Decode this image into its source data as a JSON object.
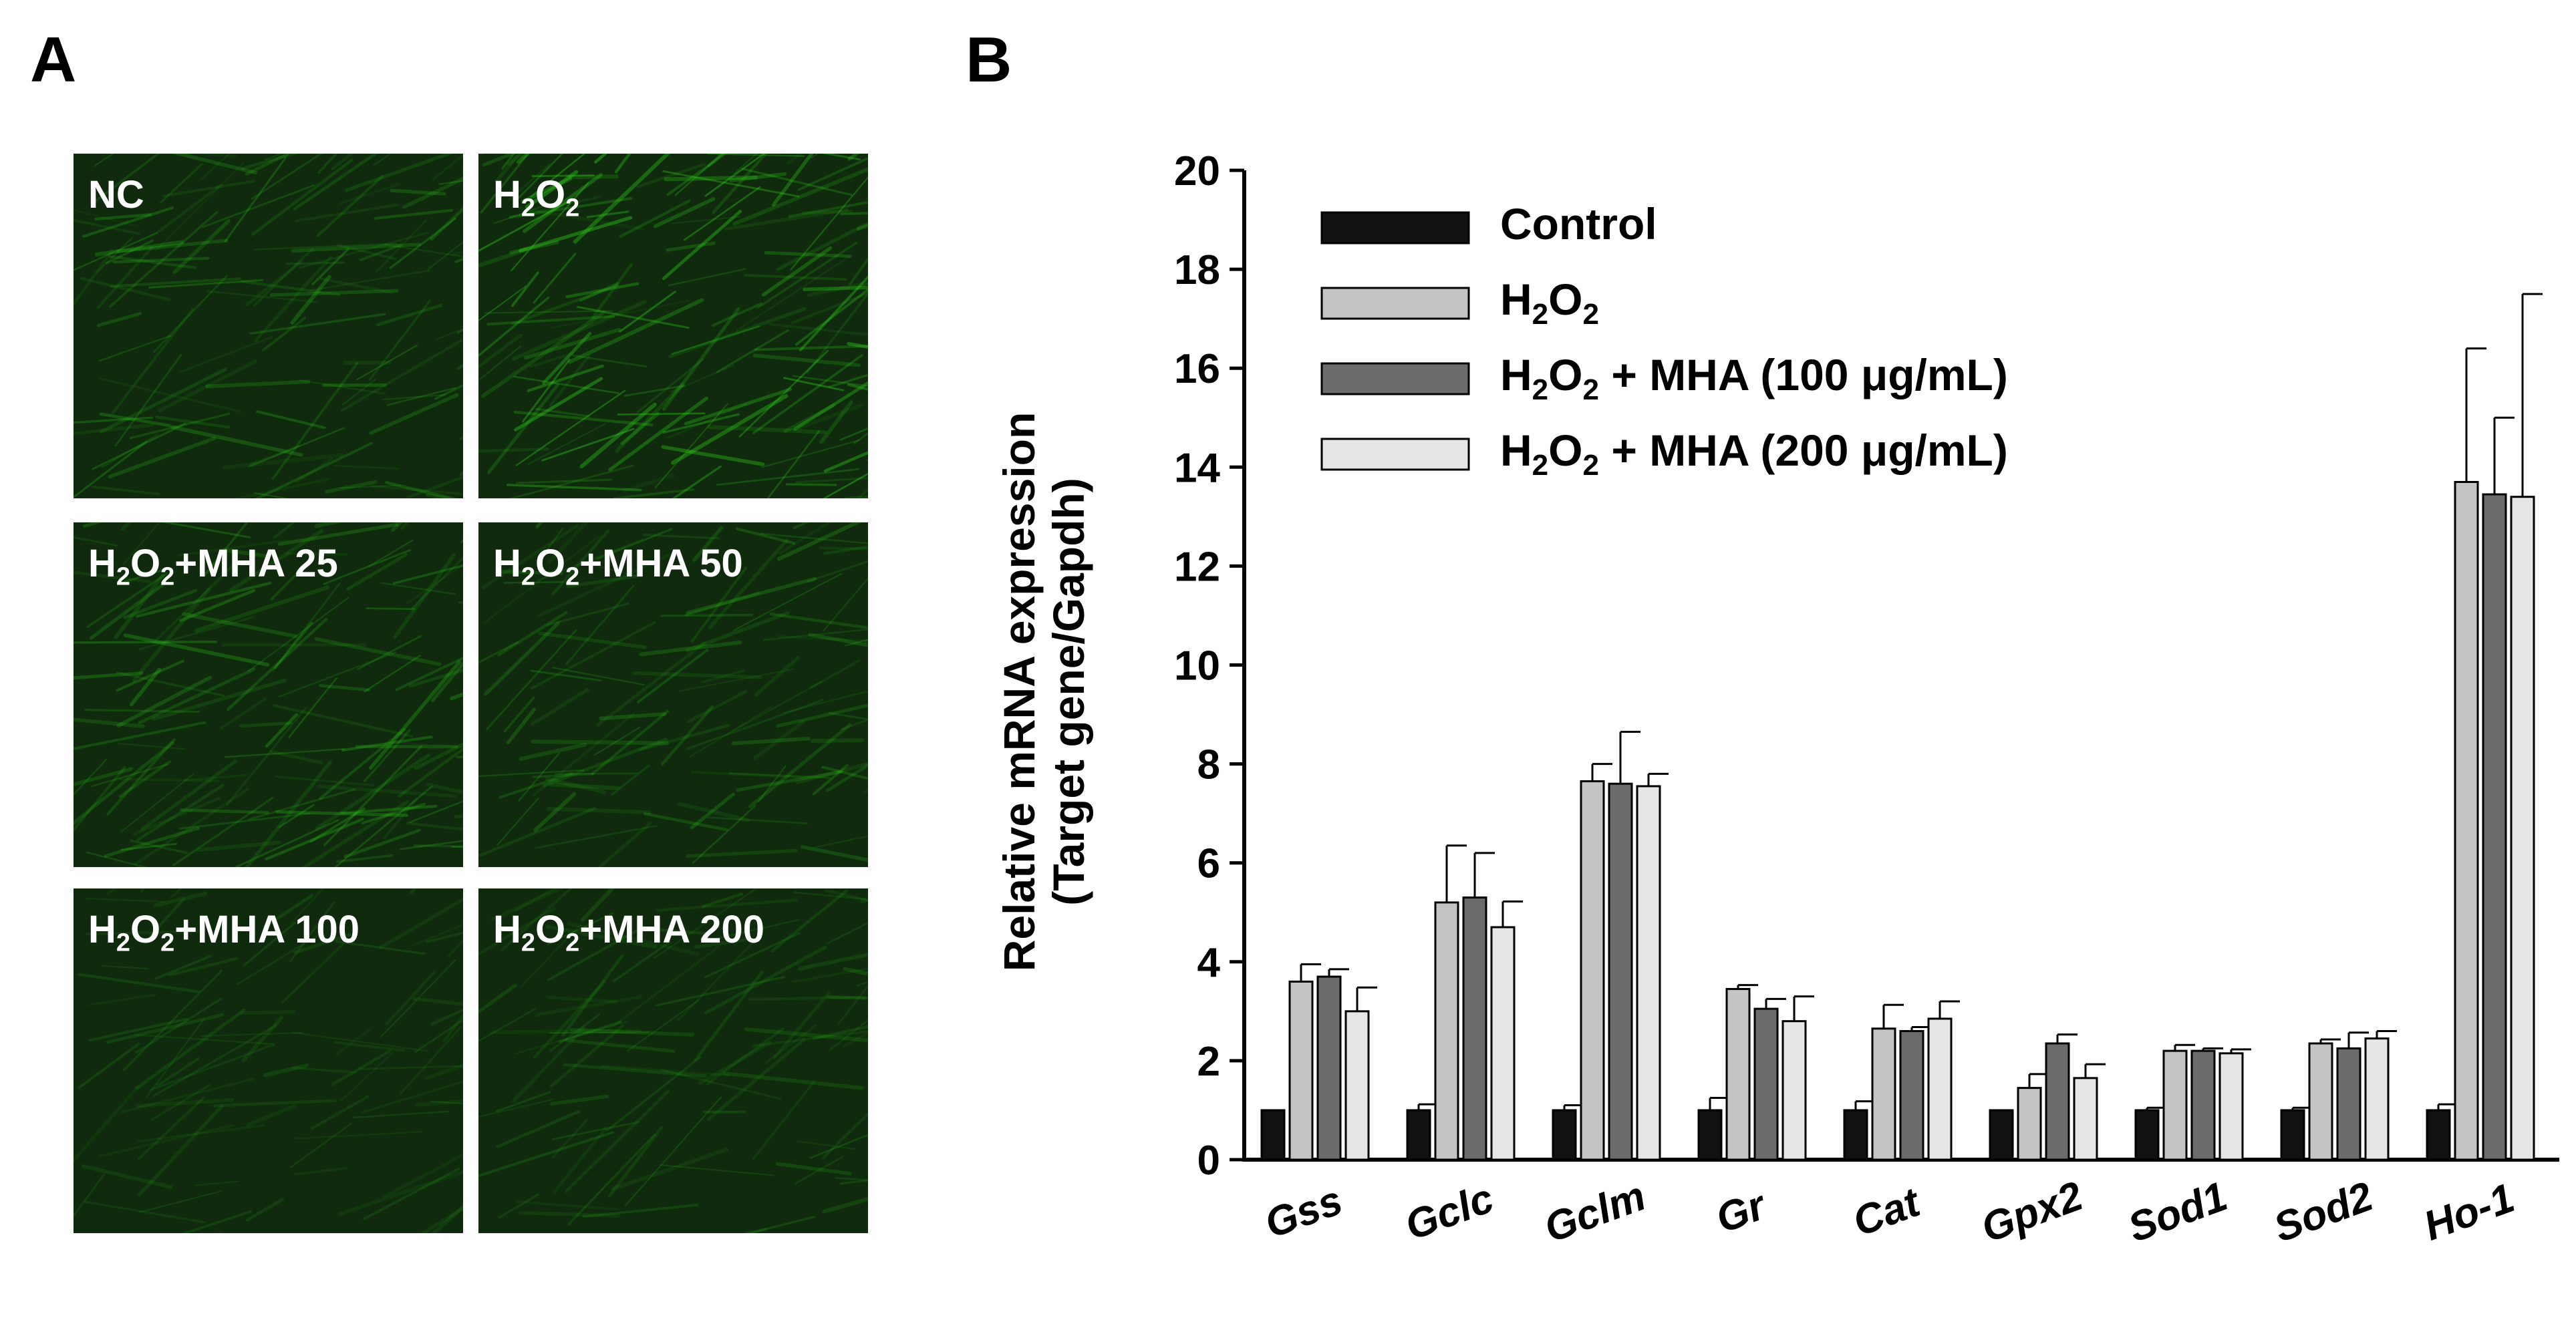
{
  "panel_a": {
    "letter": "A",
    "tiles": [
      {
        "label_html": "NC",
        "brightness": 0.55
      },
      {
        "label_html": "H<sub>2</sub>O<sub>2</sub>",
        "brightness": 1.0
      },
      {
        "label_html": "H<sub>2</sub>O<sub>2</sub>+MHA 25",
        "brightness": 0.6
      },
      {
        "label_html": "H<sub>2</sub>O<sub>2</sub>+MHA 50",
        "brightness": 0.45
      },
      {
        "label_html": "H<sub>2</sub>O<sub>2</sub>+MHA 100",
        "brightness": 0.2
      },
      {
        "label_html": "H<sub>2</sub>O<sub>2</sub>+MHA 200",
        "brightness": 0.3
      }
    ],
    "fluorescence_color": "#2ecc1a",
    "background_color": "#0f2a0d"
  },
  "panel_b": {
    "letter": "B"
  },
  "chart_data": {
    "type": "bar",
    "title": "",
    "xlabel": "",
    "ylabel_lines": [
      "Relative mRNA expression",
      "(Target gene/Gapdh)"
    ],
    "ylim": [
      0,
      20
    ],
    "yticks": [
      0,
      2,
      4,
      6,
      8,
      10,
      12,
      14,
      16,
      18,
      20
    ],
    "grid": false,
    "legend_position": "top-left",
    "categories": [
      "Gss",
      "Gclc",
      "Gclm",
      "Gr",
      "Cat",
      "Gpx2",
      "Sod1",
      "Sod2",
      "Ho-1"
    ],
    "series": [
      {
        "name": "Control",
        "color": "#111111",
        "values": [
          1.0,
          1.0,
          1.0,
          1.0,
          1.0,
          1.0,
          1.0,
          1.0,
          1.0
        ],
        "errors": [
          0.0,
          0.12,
          0.1,
          0.25,
          0.18,
          0.0,
          0.05,
          0.05,
          0.12
        ]
      },
      {
        "name": "H2O2",
        "color": "#c4c4c4",
        "values": [
          3.6,
          5.2,
          7.65,
          3.45,
          2.65,
          1.45,
          2.2,
          2.35,
          13.7
        ],
        "errors": [
          0.35,
          1.15,
          0.35,
          0.08,
          0.48,
          0.28,
          0.12,
          0.08,
          2.7
        ]
      },
      {
        "name": "H2O2 + MHA (100 μg/mL)",
        "color": "#6b6b6b",
        "values": [
          3.7,
          5.3,
          7.6,
          3.05,
          2.6,
          2.35,
          2.2,
          2.25,
          13.45
        ],
        "errors": [
          0.15,
          0.9,
          1.05,
          0.2,
          0.08,
          0.18,
          0.05,
          0.32,
          1.55
        ]
      },
      {
        "name": "H2O2 + MHA (200 μg/mL)",
        "color": "#e6e6e6",
        "values": [
          3.0,
          4.7,
          7.55,
          2.8,
          2.85,
          1.65,
          2.15,
          2.45,
          13.4
        ],
        "errors": [
          0.48,
          0.52,
          0.25,
          0.5,
          0.35,
          0.28,
          0.08,
          0.15,
          4.1
        ]
      }
    ],
    "legend_labels_html": [
      "Control",
      "H<tspan dy=\"14\" font-size=\"44\">2</tspan><tspan dy=\"-14\">O</tspan><tspan dy=\"14\" font-size=\"44\">2</tspan>",
      "H<tspan dy=\"14\" font-size=\"44\">2</tspan><tspan dy=\"-14\">O</tspan><tspan dy=\"14\" font-size=\"44\">2</tspan><tspan dy=\"-14\"> + MHA (100 μg/mL)</tspan>",
      "H<tspan dy=\"14\" font-size=\"44\">2</tspan><tspan dy=\"-14\">O</tspan><tspan dy=\"14\" font-size=\"44\">2</tspan><tspan dy=\"-14\"> + MHA (200 μg/mL)</tspan>"
    ]
  }
}
